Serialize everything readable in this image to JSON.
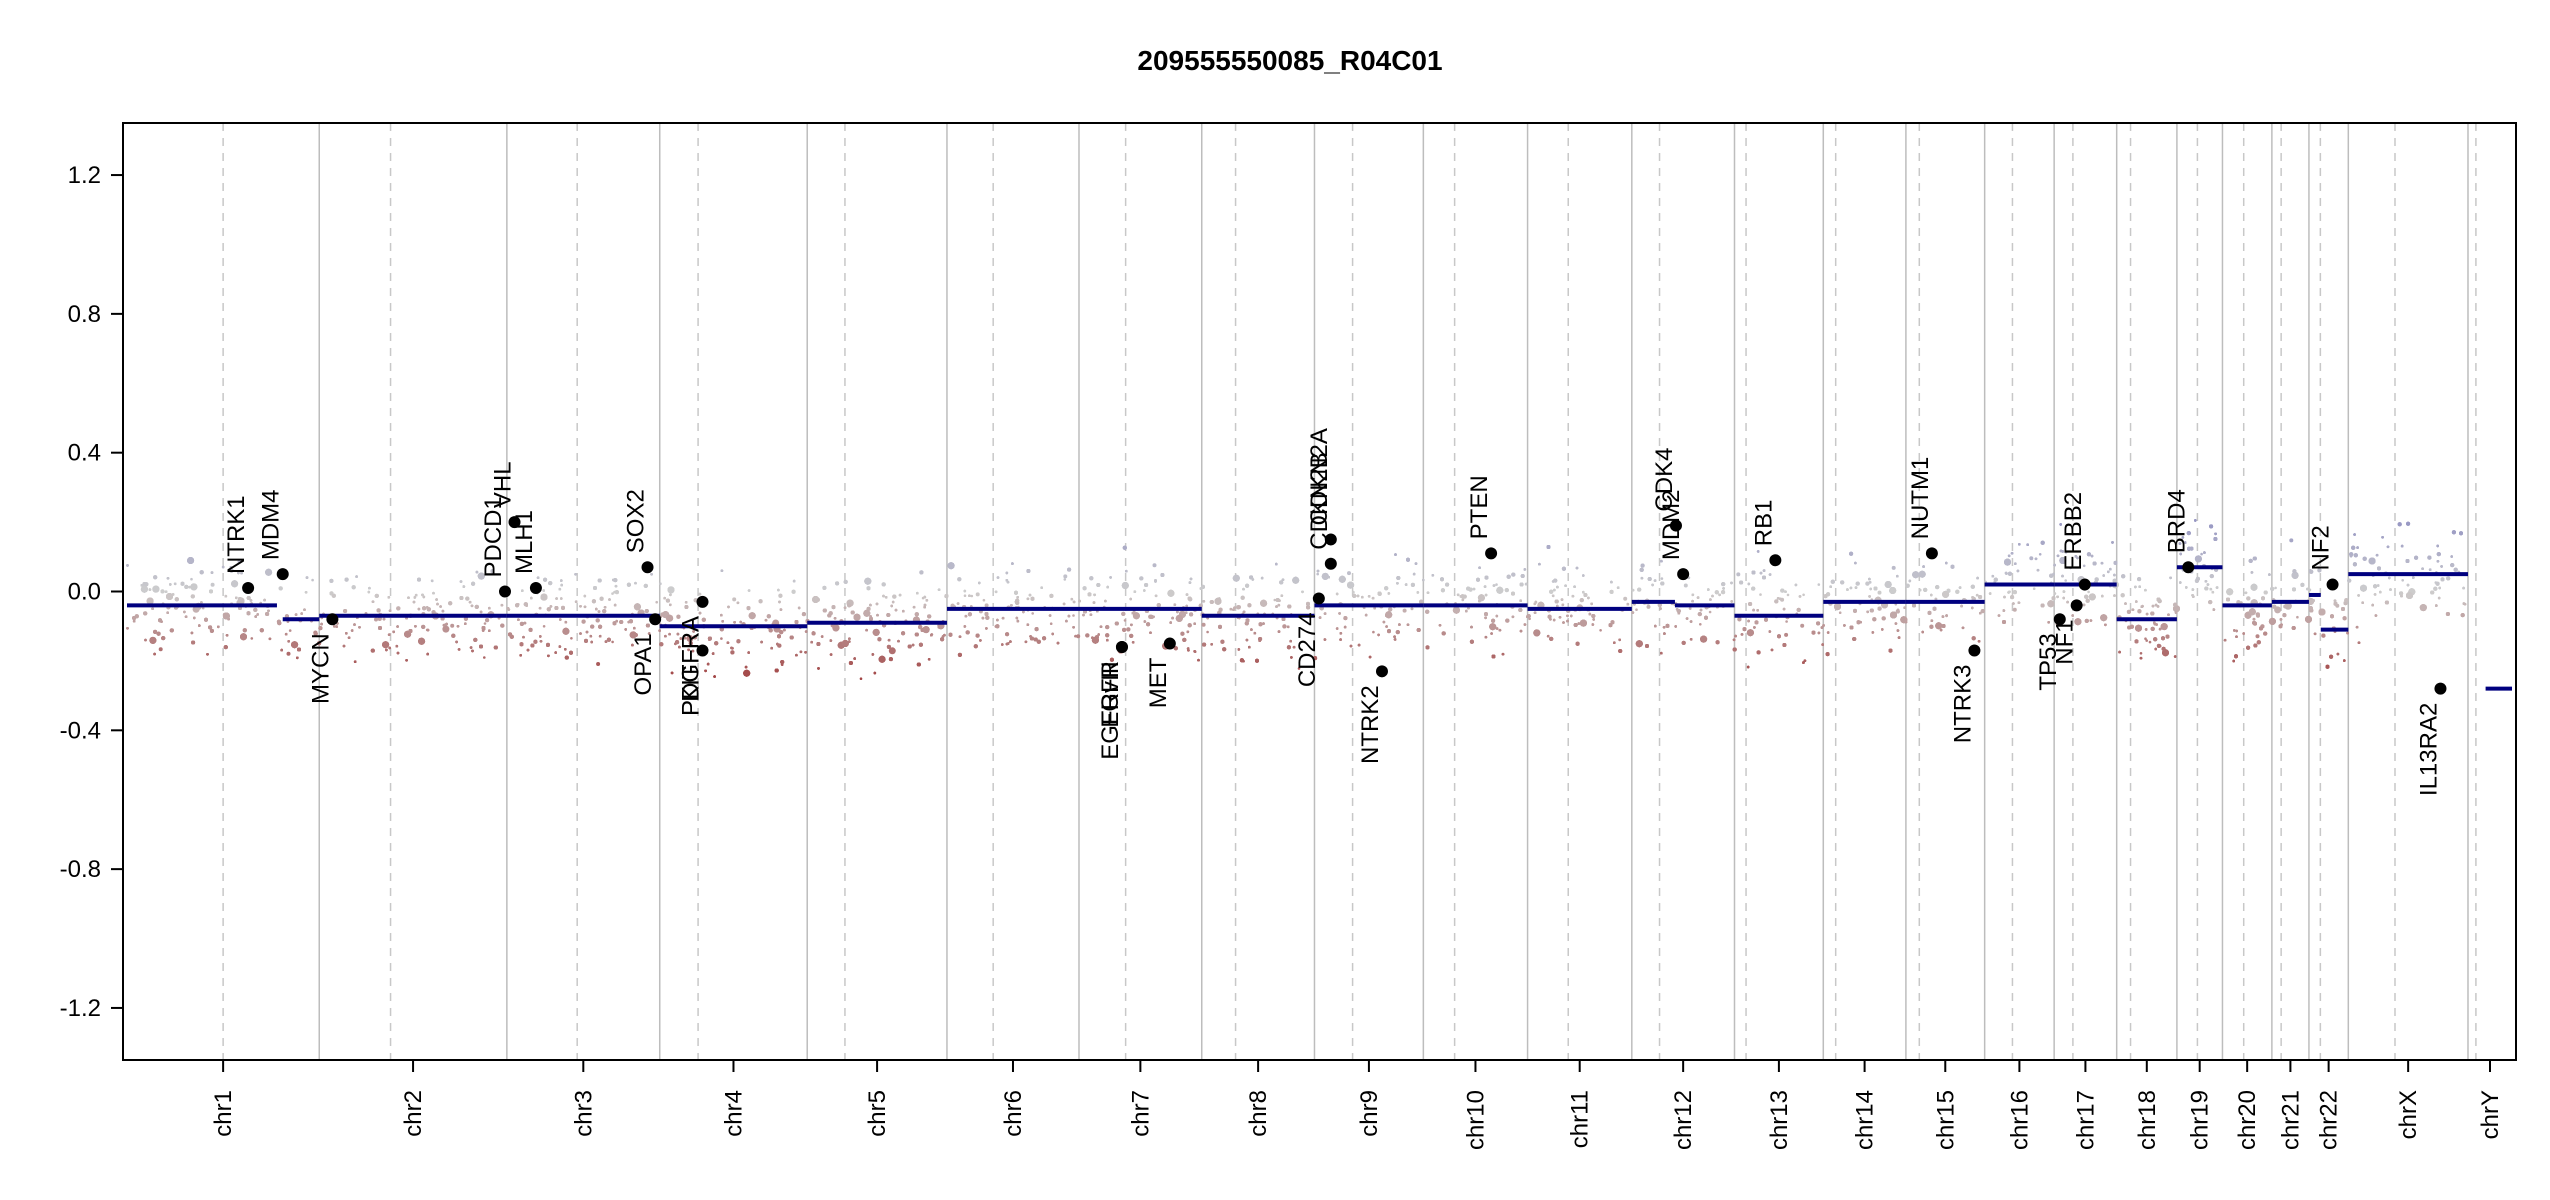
{
  "chart_data": {
    "type": "scatter",
    "title": "209555550085_R04C01",
    "xlabel": "",
    "ylabel": "",
    "ylim": [
      -1.35,
      1.35
    ],
    "yticks": [
      1.2,
      0.8,
      0.4,
      0.0,
      -0.4,
      -0.8,
      -1.2
    ],
    "grid": "vertical chromosome boundaries (solid) and centromeres (dashed)",
    "colors": {
      "segment": "#00007f",
      "gain": "#8a8ac0",
      "neutral": "#c8c8c8",
      "loss": "#8b1a1a",
      "boundary": "#bdbdbd",
      "centromere": "#c8c8c8"
    },
    "chromosomes": [
      {
        "name": "chr1",
        "size": 249,
        "centromere": 0.5
      },
      {
        "name": "chr2",
        "size": 243,
        "centromere": 0.38
      },
      {
        "name": "chr3",
        "size": 198,
        "centromere": 0.46
      },
      {
        "name": "chr4",
        "size": 191,
        "centromere": 0.26
      },
      {
        "name": "chr5",
        "size": 181,
        "centromere": 0.27
      },
      {
        "name": "chr6",
        "size": 171,
        "centromere": 0.35
      },
      {
        "name": "chr7",
        "size": 159,
        "centromere": 0.38
      },
      {
        "name": "chr8",
        "size": 146,
        "centromere": 0.3
      },
      {
        "name": "chr9",
        "size": 141,
        "centromere": 0.35
      },
      {
        "name": "chr10",
        "size": 135,
        "centromere": 0.3
      },
      {
        "name": "chr11",
        "size": 135,
        "centromere": 0.39
      },
      {
        "name": "chr12",
        "size": 133,
        "centromere": 0.27
      },
      {
        "name": "chr13",
        "size": 115,
        "centromere": 0.13
      },
      {
        "name": "chr14",
        "size": 107,
        "centromere": 0.15
      },
      {
        "name": "chr15",
        "size": 102,
        "centromere": 0.17
      },
      {
        "name": "chr16",
        "size": 90,
        "centromere": 0.4
      },
      {
        "name": "chr17",
        "size": 81,
        "centromere": 0.3
      },
      {
        "name": "chr18",
        "size": 78,
        "centromere": 0.23
      },
      {
        "name": "chr19",
        "size": 59,
        "centromere": 0.45
      },
      {
        "name": "chr20",
        "size": 64,
        "centromere": 0.43
      },
      {
        "name": "chr21",
        "size": 48,
        "centromere": 0.25
      },
      {
        "name": "chr22",
        "size": 51,
        "centromere": 0.29
      },
      {
        "name": "chrX",
        "size": 155,
        "centromere": 0.39
      },
      {
        "name": "chrY",
        "size": 57,
        "centromere": 0.18
      }
    ],
    "segments": [
      {
        "chr": "chr1",
        "start": 0.0,
        "end": 0.78,
        "value": -0.04
      },
      {
        "chr": "chr1",
        "start": 0.81,
        "end": 1.0,
        "value": -0.08
      },
      {
        "chr": "chr2",
        "start": 0.0,
        "end": 1.0,
        "value": -0.07
      },
      {
        "chr": "chr3",
        "start": 0.0,
        "end": 1.0,
        "value": -0.07
      },
      {
        "chr": "chr4",
        "start": 0.0,
        "end": 1.0,
        "value": -0.1
      },
      {
        "chr": "chr5",
        "start": 0.0,
        "end": 1.0,
        "value": -0.09
      },
      {
        "chr": "chr6",
        "start": 0.0,
        "end": 1.0,
        "value": -0.05
      },
      {
        "chr": "chr7",
        "start": 0.0,
        "end": 1.0,
        "value": -0.05
      },
      {
        "chr": "chr8",
        "start": 0.0,
        "end": 1.0,
        "value": -0.07
      },
      {
        "chr": "chr9",
        "start": 0.0,
        "end": 1.0,
        "value": -0.04
      },
      {
        "chr": "chr10",
        "start": 0.0,
        "end": 1.0,
        "value": -0.04
      },
      {
        "chr": "chr11",
        "start": 0.0,
        "end": 1.0,
        "value": -0.05
      },
      {
        "chr": "chr12",
        "start": 0.0,
        "end": 0.42,
        "value": -0.03
      },
      {
        "chr": "chr12",
        "start": 0.42,
        "end": 1.0,
        "value": -0.04
      },
      {
        "chr": "chr13",
        "start": 0.0,
        "end": 1.0,
        "value": -0.07
      },
      {
        "chr": "chr14",
        "start": 0.0,
        "end": 1.0,
        "value": -0.03
      },
      {
        "chr": "chr15",
        "start": 0.0,
        "end": 1.0,
        "value": -0.03
      },
      {
        "chr": "chr16",
        "start": 0.0,
        "end": 1.0,
        "value": 0.02
      },
      {
        "chr": "chr17",
        "start": 0.0,
        "end": 1.0,
        "value": 0.02
      },
      {
        "chr": "chr18",
        "start": 0.0,
        "end": 1.0,
        "value": -0.08
      },
      {
        "chr": "chr19",
        "start": 0.0,
        "end": 1.0,
        "value": 0.07
      },
      {
        "chr": "chr20",
        "start": 0.0,
        "end": 1.0,
        "value": -0.04
      },
      {
        "chr": "chr21",
        "start": 0.0,
        "end": 1.0,
        "value": -0.03
      },
      {
        "chr": "chr22",
        "start": 0.0,
        "end": 0.3,
        "value": -0.01
      },
      {
        "chr": "chr22",
        "start": 0.3,
        "end": 1.0,
        "value": -0.11
      },
      {
        "chr": "chrX",
        "start": 0.0,
        "end": 1.0,
        "value": 0.05
      },
      {
        "chr": "chrY",
        "start": 0.4,
        "end": 1.0,
        "value": -0.28
      }
    ],
    "genes": [
      {
        "name": "NTRK1",
        "chr": "chr1",
        "pos": 0.63,
        "value": 0.01
      },
      {
        "name": "MDM4",
        "chr": "chr1",
        "pos": 0.81,
        "value": 0.05
      },
      {
        "name": "MYCN",
        "chr": "chr2",
        "pos": 0.07,
        "value": -0.08
      },
      {
        "name": "PDCD1",
        "chr": "chr2",
        "pos": 0.99,
        "value": 0.0
      },
      {
        "name": "VHL",
        "chr": "chr3",
        "pos": 0.05,
        "value": 0.2
      },
      {
        "name": "MLH1",
        "chr": "chr3",
        "pos": 0.19,
        "value": 0.01
      },
      {
        "name": "SOX2",
        "chr": "chr3",
        "pos": 0.92,
        "value": 0.07
      },
      {
        "name": "OPA1",
        "chr": "chr3",
        "pos": 0.97,
        "value": -0.08
      },
      {
        "name": "PDGFRA",
        "chr": "chr4",
        "pos": 0.29,
        "value": -0.03
      },
      {
        "name": "KIT",
        "chr": "chr4",
        "pos": 0.29,
        "value": -0.17
      },
      {
        "name": "EGFR",
        "chr": "chr7",
        "pos": 0.35,
        "value": -0.16
      },
      {
        "name": "EGFRvIII",
        "chr": "chr7",
        "pos": 0.35,
        "value": -0.16
      },
      {
        "name": "MET",
        "chr": "chr7",
        "pos": 0.74,
        "value": -0.15
      },
      {
        "name": "CD274",
        "chr": "chr9",
        "pos": 0.04,
        "value": -0.02
      },
      {
        "name": "CDKN2A",
        "chr": "chr9",
        "pos": 0.15,
        "value": 0.15
      },
      {
        "name": "CDKN2B",
        "chr": "chr9",
        "pos": 0.15,
        "value": 0.08
      },
      {
        "name": "NTRK2",
        "chr": "chr9",
        "pos": 0.62,
        "value": -0.23
      },
      {
        "name": "PTEN",
        "chr": "chr10",
        "pos": 0.65,
        "value": 0.11
      },
      {
        "name": "CDK4",
        "chr": "chr12",
        "pos": 0.43,
        "value": 0.19
      },
      {
        "name": "MDM2",
        "chr": "chr12",
        "pos": 0.5,
        "value": 0.05
      },
      {
        "name": "RB1",
        "chr": "chr13",
        "pos": 0.46,
        "value": 0.09
      },
      {
        "name": "NUTM1",
        "chr": "chr15",
        "pos": 0.33,
        "value": 0.11
      },
      {
        "name": "NTRK3",
        "chr": "chr15",
        "pos": 0.87,
        "value": -0.17
      },
      {
        "name": "TP53",
        "chr": "chr17",
        "pos": 0.09,
        "value": -0.08
      },
      {
        "name": "NF1",
        "chr": "chr17",
        "pos": 0.36,
        "value": -0.04
      },
      {
        "name": "ERBB2",
        "chr": "chr17",
        "pos": 0.49,
        "value": 0.02
      },
      {
        "name": "BRD4",
        "chr": "chr19",
        "pos": 0.25,
        "value": 0.07
      },
      {
        "name": "NF2",
        "chr": "chr22",
        "pos": 0.6,
        "value": 0.02
      },
      {
        "name": "IL13RA2",
        "chr": "chrX",
        "pos": 0.77,
        "value": -0.28
      }
    ]
  }
}
